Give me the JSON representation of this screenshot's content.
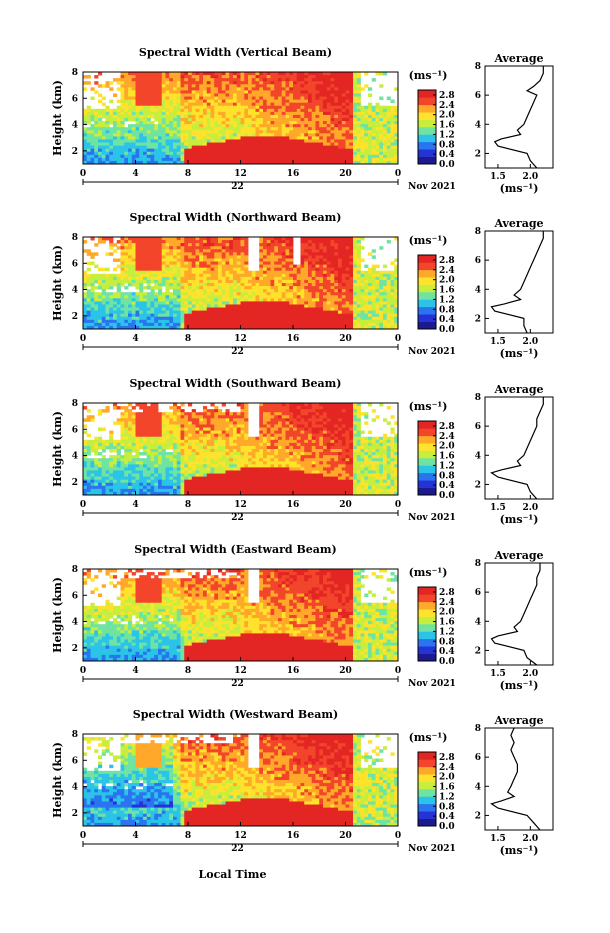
{
  "chart_data": {
    "type": "heatmap",
    "x_axis": {
      "ticks": [
        "0",
        "4",
        "8",
        "12",
        "16",
        "20",
        "0"
      ],
      "lim_hours": [
        0,
        24
      ],
      "day_label": "22",
      "date_label": "Nov 2021",
      "label": "Local Time"
    },
    "y_axis": {
      "label": "Height (km)",
      "ticks": [
        "2",
        "4",
        "6",
        "8"
      ],
      "lim_km": [
        1,
        8
      ]
    },
    "colorbar": {
      "unit_label": "(ms⁻¹)",
      "ticks": [
        "2.8",
        "2.4",
        "2.0",
        "1.6",
        "1.2",
        "0.8",
        "0.4",
        "0.0"
      ],
      "range": [
        0,
        3.0
      ],
      "colormap": [
        "#1d1a8f",
        "#2433d6",
        "#2a74f0",
        "#2bc4e8",
        "#6fe3a2",
        "#c7ee3d",
        "#ffe22b",
        "#ffa82a",
        "#f2452a",
        "#e32623"
      ]
    },
    "average_axis": {
      "title": "Average",
      "xlabel": "(ms⁻¹)",
      "x_ticks": [
        "1.5",
        "2.0"
      ],
      "xlim": [
        1.3,
        2.35
      ],
      "y_ticks": [
        "2",
        "4",
        "6",
        "8"
      ]
    },
    "panels": [
      {
        "title": "Spectral Width (Vertical Beam)",
        "average_profile": {
          "height_km": [
            1.0,
            1.5,
            2.0,
            2.5,
            2.8,
            3.0,
            3.3,
            3.6,
            4.0,
            4.5,
            5.0,
            5.5,
            6.0,
            6.3,
            6.6,
            7.0,
            7.5,
            8.0
          ],
          "width_ms": [
            2.1,
            2.0,
            1.95,
            1.5,
            1.45,
            1.55,
            1.85,
            1.8,
            1.9,
            1.95,
            2.0,
            2.05,
            2.1,
            1.95,
            2.05,
            2.15,
            2.2,
            2.2
          ]
        }
      },
      {
        "title": "Spectral Width (Northward Beam)",
        "average_profile": {
          "height_km": [
            1.0,
            1.5,
            2.0,
            2.5,
            2.8,
            3.0,
            3.3,
            3.6,
            4.0,
            4.5,
            5.0,
            5.5,
            6.0,
            6.5,
            7.0,
            7.5,
            8.0
          ],
          "width_ms": [
            1.95,
            1.9,
            1.9,
            1.45,
            1.4,
            1.6,
            1.85,
            1.75,
            1.85,
            1.9,
            1.95,
            2.0,
            2.05,
            2.1,
            2.15,
            2.2,
            2.2
          ]
        }
      },
      {
        "title": "Spectral Width (Southward Beam)",
        "average_profile": {
          "height_km": [
            1.0,
            1.5,
            2.0,
            2.5,
            2.8,
            3.0,
            3.3,
            3.6,
            4.0,
            4.5,
            5.0,
            5.5,
            6.0,
            6.5,
            7.0,
            7.5,
            8.0
          ],
          "width_ms": [
            2.1,
            2.0,
            1.95,
            1.5,
            1.4,
            1.55,
            1.85,
            1.8,
            1.9,
            1.95,
            2.0,
            2.05,
            2.1,
            2.1,
            2.15,
            2.2,
            2.2
          ]
        }
      },
      {
        "title": "Spectral Width (Eastward Beam)",
        "average_profile": {
          "height_km": [
            1.0,
            1.5,
            2.0,
            2.5,
            2.8,
            3.0,
            3.3,
            3.6,
            4.0,
            4.5,
            5.0,
            5.5,
            6.0,
            6.5,
            7.0,
            7.5,
            8.0
          ],
          "width_ms": [
            2.1,
            1.95,
            1.9,
            1.45,
            1.4,
            1.5,
            1.8,
            1.75,
            1.85,
            1.9,
            1.95,
            2.0,
            2.05,
            2.1,
            2.1,
            2.15,
            2.15
          ]
        }
      },
      {
        "title": "Spectral Width (Westward Beam)",
        "average_profile": {
          "height_km": [
            1.0,
            1.5,
            2.0,
            2.5,
            2.8,
            3.0,
            3.3,
            3.6,
            4.0,
            4.5,
            5.0,
            5.5,
            6.0,
            6.5,
            7.0,
            7.5,
            8.0
          ],
          "width_ms": [
            2.15,
            2.05,
            1.95,
            1.5,
            1.4,
            1.55,
            1.75,
            1.65,
            1.7,
            1.75,
            1.8,
            1.8,
            1.75,
            1.7,
            1.75,
            1.7,
            1.75
          ]
        }
      }
    ]
  }
}
